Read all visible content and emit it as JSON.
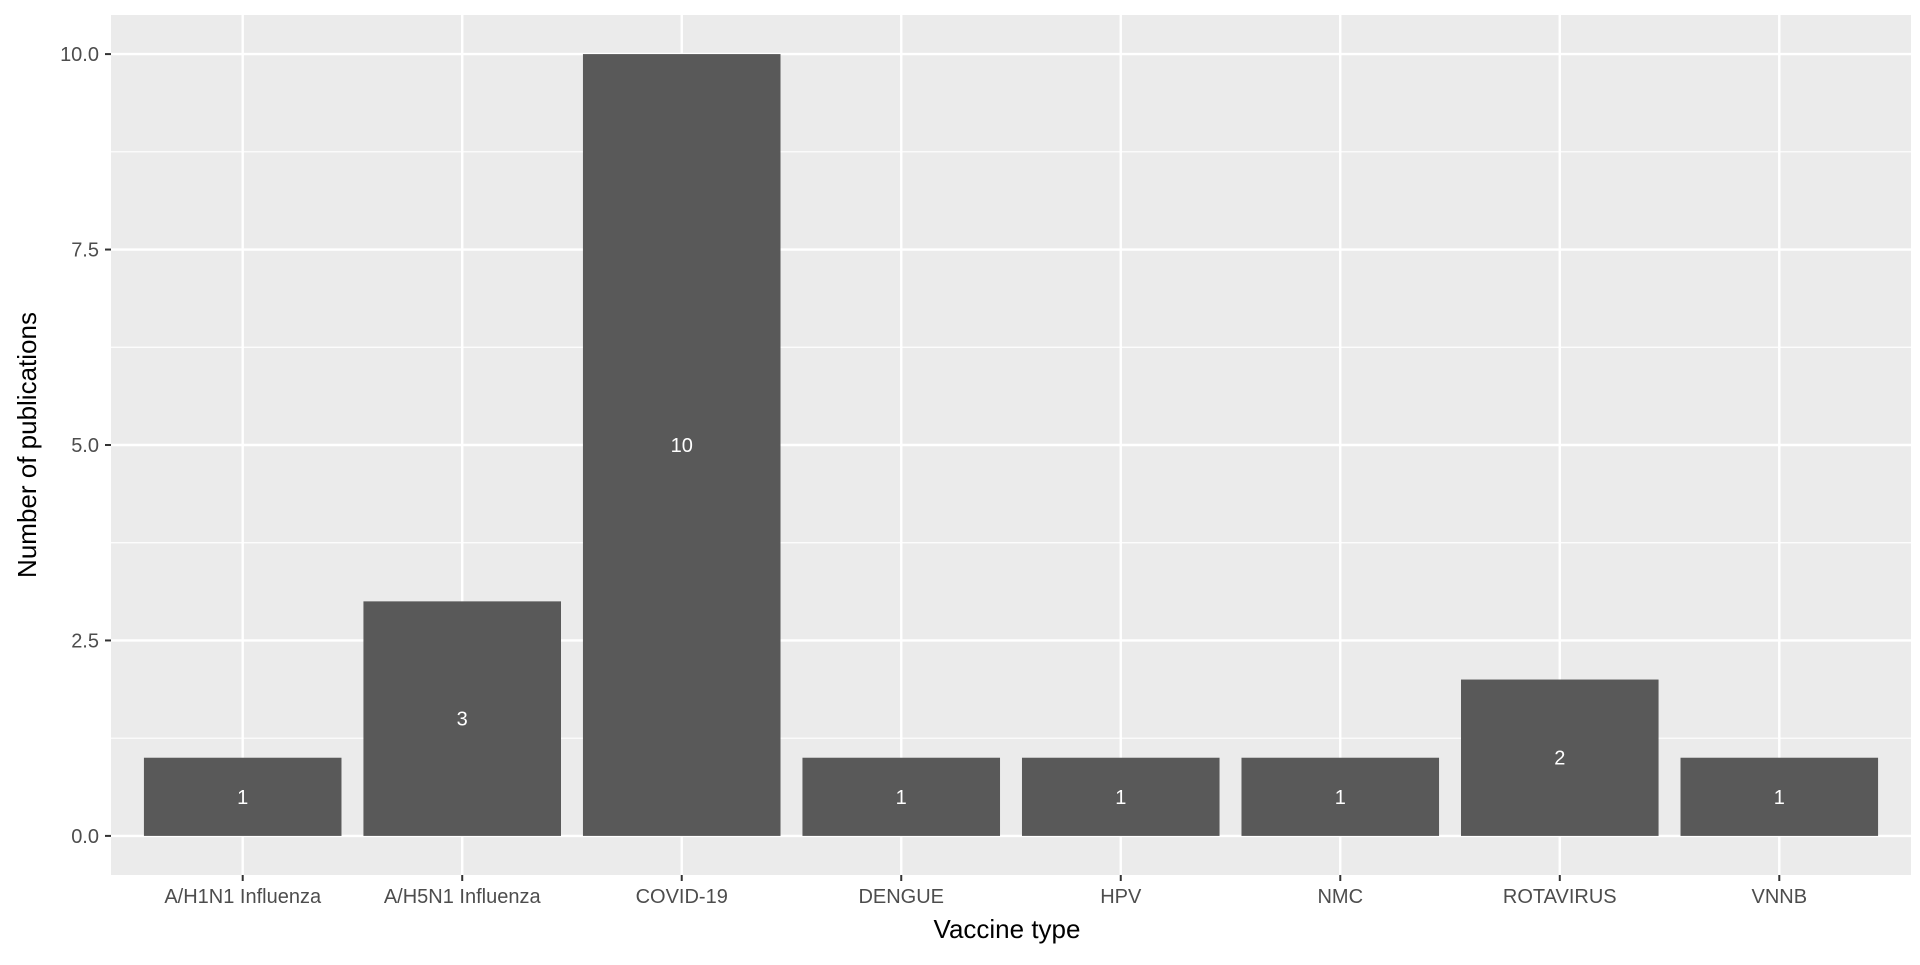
{
  "chart_data": {
    "type": "bar",
    "title": "",
    "xlabel": "Vaccine type",
    "ylabel": "Number of publications",
    "categories": [
      "A/H1N1 Influenza",
      "A/H5N1 Influenza",
      "COVID-19",
      "DENGUE",
      "HPV",
      "NMC",
      "ROTAVIRUS",
      "VNNB"
    ],
    "values": [
      1,
      3,
      10,
      1,
      1,
      1,
      2,
      1
    ],
    "data_labels": [
      "1",
      "3",
      "10",
      "1",
      "1",
      "1",
      "2",
      "1"
    ],
    "ylim": [
      -0.5,
      10.5
    ],
    "y_ticks": [
      0,
      2.5,
      5,
      7.5,
      10
    ],
    "y_tick_labels": [
      "0.0",
      "2.5",
      "5.0",
      "7.5",
      "10.0"
    ],
    "grid": true,
    "legend": "none",
    "colors": {
      "panel_background": "#ebebeb",
      "grid_major": "#ffffff",
      "bar_fill": "#595959",
      "bar_label": "#ffffff",
      "tick_label": "#4d4d4d",
      "axis_title": "#000000"
    }
  }
}
